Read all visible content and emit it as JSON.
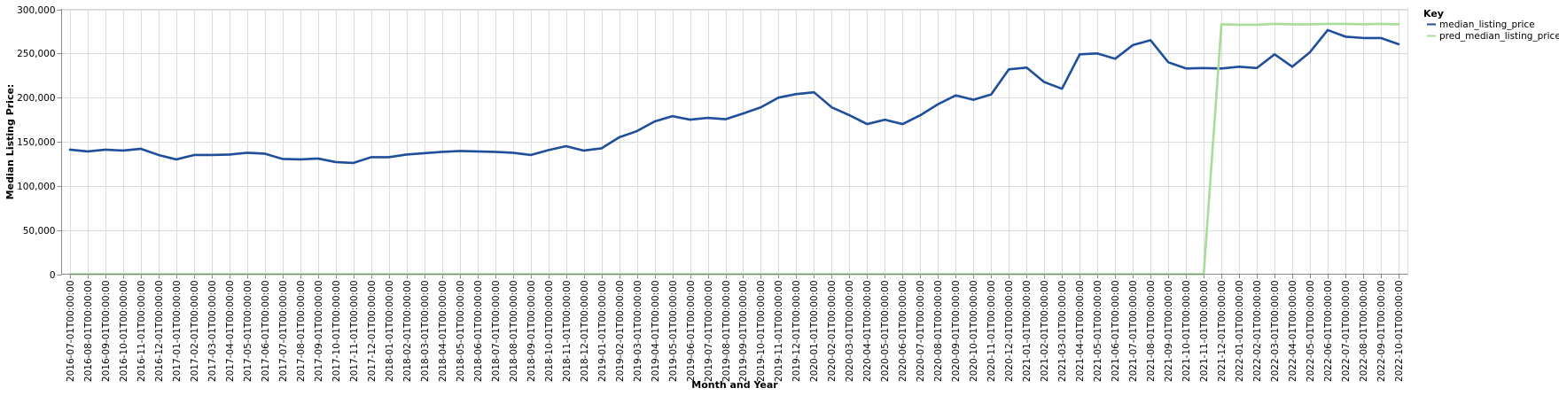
{
  "chart_data": {
    "type": "line",
    "xlabel": "Month and Year",
    "ylabel": "Median Listing Price:",
    "ylim": [
      0,
      300000
    ],
    "yticks": [
      0,
      50000,
      100000,
      150000,
      200000,
      250000,
      300000
    ],
    "ytick_labels": [
      "0",
      "50,000",
      "100,000",
      "150,000",
      "200,000",
      "250,000",
      "300,000"
    ],
    "grid": true,
    "legend": {
      "title": "Key",
      "placement": "top-right"
    },
    "categories": [
      "2016-07-01T00:00:00",
      "2016-08-01T00:00:00",
      "2016-09-01T00:00:00",
      "2016-10-01T00:00:00",
      "2016-11-01T00:00:00",
      "2016-12-01T00:00:00",
      "2017-01-01T00:00:00",
      "2017-02-01T00:00:00",
      "2017-03-01T00:00:00",
      "2017-04-01T00:00:00",
      "2017-05-01T00:00:00",
      "2017-06-01T00:00:00",
      "2017-07-01T00:00:00",
      "2017-08-01T00:00:00",
      "2017-09-01T00:00:00",
      "2017-10-01T00:00:00",
      "2017-11-01T00:00:00",
      "2017-12-01T00:00:00",
      "2018-01-01T00:00:00",
      "2018-02-01T00:00:00",
      "2018-03-01T00:00:00",
      "2018-04-01T00:00:00",
      "2018-05-01T00:00:00",
      "2018-06-01T00:00:00",
      "2018-07-01T00:00:00",
      "2018-08-01T00:00:00",
      "2018-09-01T00:00:00",
      "2018-10-01T00:00:00",
      "2018-11-01T00:00:00",
      "2018-12-01T00:00:00",
      "2019-01-01T00:00:00",
      "2019-02-01T00:00:00",
      "2019-03-01T00:00:00",
      "2019-04-01T00:00:00",
      "2019-05-01T00:00:00",
      "2019-06-01T00:00:00",
      "2019-07-01T00:00:00",
      "2019-08-01T00:00:00",
      "2019-09-01T00:00:00",
      "2019-10-01T00:00:00",
      "2019-11-01T00:00:00",
      "2019-12-01T00:00:00",
      "2020-01-01T00:00:00",
      "2020-02-01T00:00:00",
      "2020-03-01T00:00:00",
      "2020-04-01T00:00:00",
      "2020-05-01T00:00:00",
      "2020-06-01T00:00:00",
      "2020-07-01T00:00:00",
      "2020-08-01T00:00:00",
      "2020-09-01T00:00:00",
      "2020-10-01T00:00:00",
      "2020-11-01T00:00:00",
      "2020-12-01T00:00:00",
      "2021-01-01T00:00:00",
      "2021-02-01T00:00:00",
      "2021-03-01T00:00:00",
      "2021-04-01T00:00:00",
      "2021-05-01T00:00:00",
      "2021-06-01T00:00:00",
      "2021-07-01T00:00:00",
      "2021-08-01T00:00:00",
      "2021-09-01T00:00:00",
      "2021-10-01T00:00:00",
      "2021-11-01T00:00:00",
      "2021-12-01T00:00:00",
      "2022-01-01T00:00:00",
      "2022-02-01T00:00:00",
      "2022-03-01T00:00:00",
      "2022-04-01T00:00:00",
      "2022-05-01T00:00:00",
      "2022-06-01T00:00:00",
      "2022-07-01T00:00:00",
      "2022-08-01T00:00:00",
      "2022-09-01T00:00:00",
      "2022-10-01T00:00:00"
    ],
    "series": [
      {
        "name": "median_listing_price",
        "color": "#1f4e9b",
        "values": [
          141000,
          139000,
          141000,
          140000,
          142000,
          135000,
          130000,
          135000,
          135000,
          135500,
          137500,
          136500,
          130500,
          130000,
          131000,
          127000,
          126000,
          132500,
          132500,
          135500,
          137000,
          138500,
          139500,
          139000,
          138500,
          137500,
          135000,
          140500,
          145000,
          140000,
          142500,
          155000,
          162000,
          173000,
          179000,
          175000,
          177000,
          175500,
          182000,
          189000,
          200000,
          204000,
          206000,
          189000,
          180000,
          170000,
          175000,
          170000,
          180000,
          192500,
          202500,
          197500,
          203500,
          232000,
          234000,
          217500,
          210000,
          249000,
          250000,
          244000,
          259500,
          265000,
          240000,
          233000,
          233500,
          233000,
          235000,
          233500,
          249000,
          235000,
          251500,
          276500,
          269000,
          267500,
          267500,
          260500
        ]
      },
      {
        "name": "pred_median_listing_price",
        "color": "#a8dc98",
        "values": [
          0,
          0,
          0,
          0,
          0,
          0,
          0,
          0,
          0,
          0,
          0,
          0,
          0,
          0,
          0,
          0,
          0,
          0,
          0,
          0,
          0,
          0,
          0,
          0,
          0,
          0,
          0,
          0,
          0,
          0,
          0,
          0,
          0,
          0,
          0,
          0,
          0,
          0,
          0,
          0,
          0,
          0,
          0,
          0,
          0,
          0,
          0,
          0,
          0,
          0,
          0,
          0,
          0,
          0,
          0,
          0,
          0,
          0,
          0,
          0,
          0,
          0,
          0,
          0,
          0,
          283000,
          282500,
          282500,
          283500,
          283000,
          283000,
          283500,
          283500,
          283000,
          283500,
          283000
        ]
      }
    ]
  }
}
